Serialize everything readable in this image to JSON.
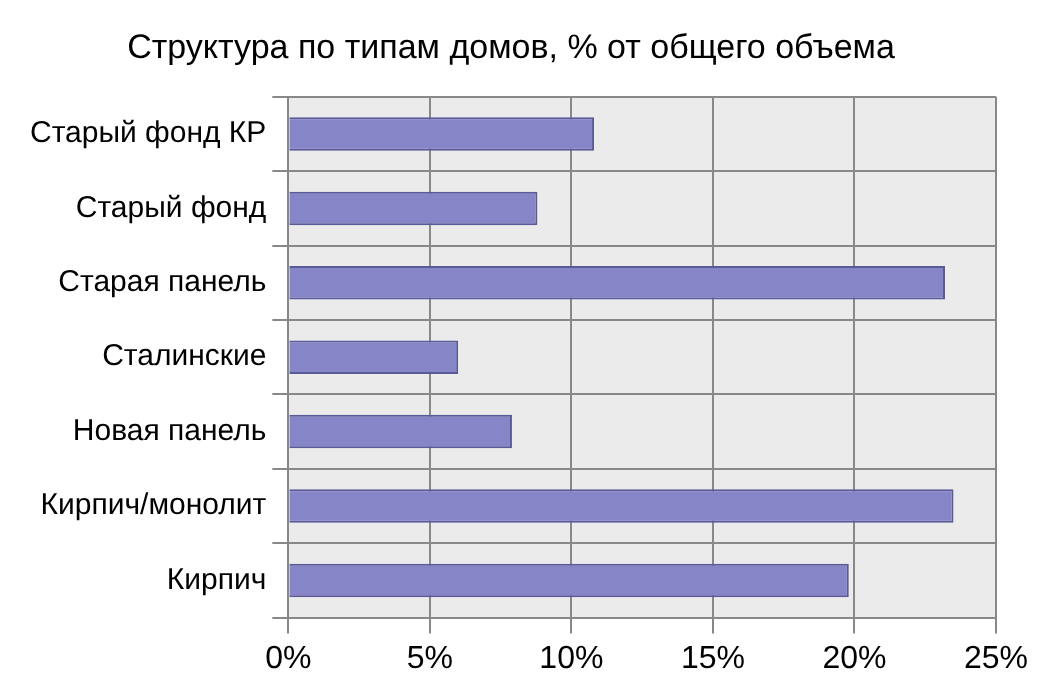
{
  "chart_data": {
    "type": "bar",
    "orientation": "horizontal",
    "title": "Структура по типам домов, % от общего объема",
    "categories": [
      "Старый фонд КР",
      "Старый фонд",
      "Старая панель",
      "Сталинские",
      "Новая панель",
      "Кирпич/монолит",
      "Кирпич"
    ],
    "values": [
      10.8,
      8.8,
      23.2,
      6.0,
      7.9,
      23.5,
      19.8
    ],
    "color": "#8585c8",
    "xlim": [
      0,
      25
    ],
    "xticks": [
      {
        "value": 0,
        "label": "0%"
      },
      {
        "value": 5,
        "label": "5%"
      },
      {
        "value": 10,
        "label": "10%"
      },
      {
        "value": 15,
        "label": "15%"
      },
      {
        "value": 20,
        "label": "20%"
      },
      {
        "value": 25,
        "label": "25%"
      }
    ],
    "grid": true,
    "legend": false
  }
}
